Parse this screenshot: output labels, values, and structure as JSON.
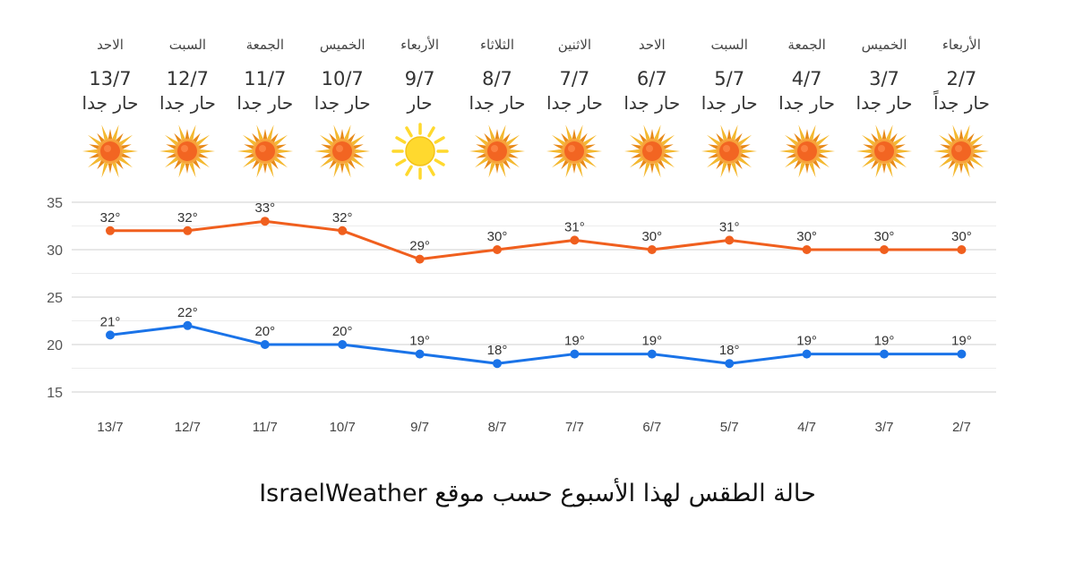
{
  "colors": {
    "high": "#f05f1e",
    "low": "#1a73e8",
    "grid": "#dddddd",
    "sun_hot": "#f26522",
    "sun_rays": "#f4b830",
    "sun_warm": "#ffd92e"
  },
  "forecast": [
    {
      "day": "الاحد",
      "date": "13/7",
      "desc": "حار جدا",
      "icon": "hot-sun-icon"
    },
    {
      "day": "السبت",
      "date": "12/7",
      "desc": "حار جدا",
      "icon": "hot-sun-icon"
    },
    {
      "day": "الجمعة",
      "date": "11/7",
      "desc": "حار جدا",
      "icon": "hot-sun-icon"
    },
    {
      "day": "الخميس",
      "date": "10/7",
      "desc": "حار جدا",
      "icon": "hot-sun-icon"
    },
    {
      "day": "الأربعاء",
      "date": "9/7",
      "desc": "حار",
      "icon": "warm-sun-icon"
    },
    {
      "day": "الثلاثاء",
      "date": "8/7",
      "desc": "حار جدا",
      "icon": "hot-sun-icon"
    },
    {
      "day": "الاثنين",
      "date": "7/7",
      "desc": "حار جدا",
      "icon": "hot-sun-icon"
    },
    {
      "day": "الاحد",
      "date": "6/7",
      "desc": "حار جدا",
      "icon": "hot-sun-icon"
    },
    {
      "day": "السبت",
      "date": "5/7",
      "desc": "حار جدا",
      "icon": "hot-sun-icon"
    },
    {
      "day": "الجمعة",
      "date": "4/7",
      "desc": "حار جدا",
      "icon": "hot-sun-icon"
    },
    {
      "day": "الخميس",
      "date": "3/7",
      "desc": "حار جدا",
      "icon": "hot-sun-icon"
    },
    {
      "day": "الأربعاء",
      "date": "2/7",
      "desc": "حار جداً",
      "icon": "hot-sun-icon"
    }
  ],
  "chart_data": {
    "type": "line",
    "categories": [
      "13/7",
      "12/7",
      "11/7",
      "10/7",
      "9/7",
      "8/7",
      "7/7",
      "6/7",
      "5/7",
      "4/7",
      "3/7",
      "2/7"
    ],
    "series": [
      {
        "values": [
          32,
          32,
          33,
          32,
          29,
          30,
          31,
          30,
          31,
          30,
          30,
          30
        ],
        "color": "#f05f1e"
      },
      {
        "values": [
          21,
          22,
          20,
          20,
          19,
          18,
          19,
          19,
          18,
          19,
          19,
          19
        ],
        "color": "#1a73e8"
      }
    ],
    "yticks": [
      15,
      20,
      25,
      30,
      35
    ],
    "ylim": [
      15,
      35
    ],
    "value_suffix": "°",
    "grid": true,
    "title": "",
    "xlabel": "",
    "ylabel": ""
  },
  "caption": "حالة الطقس لهذا الأسبوع حسب موقع IsraelWeather"
}
